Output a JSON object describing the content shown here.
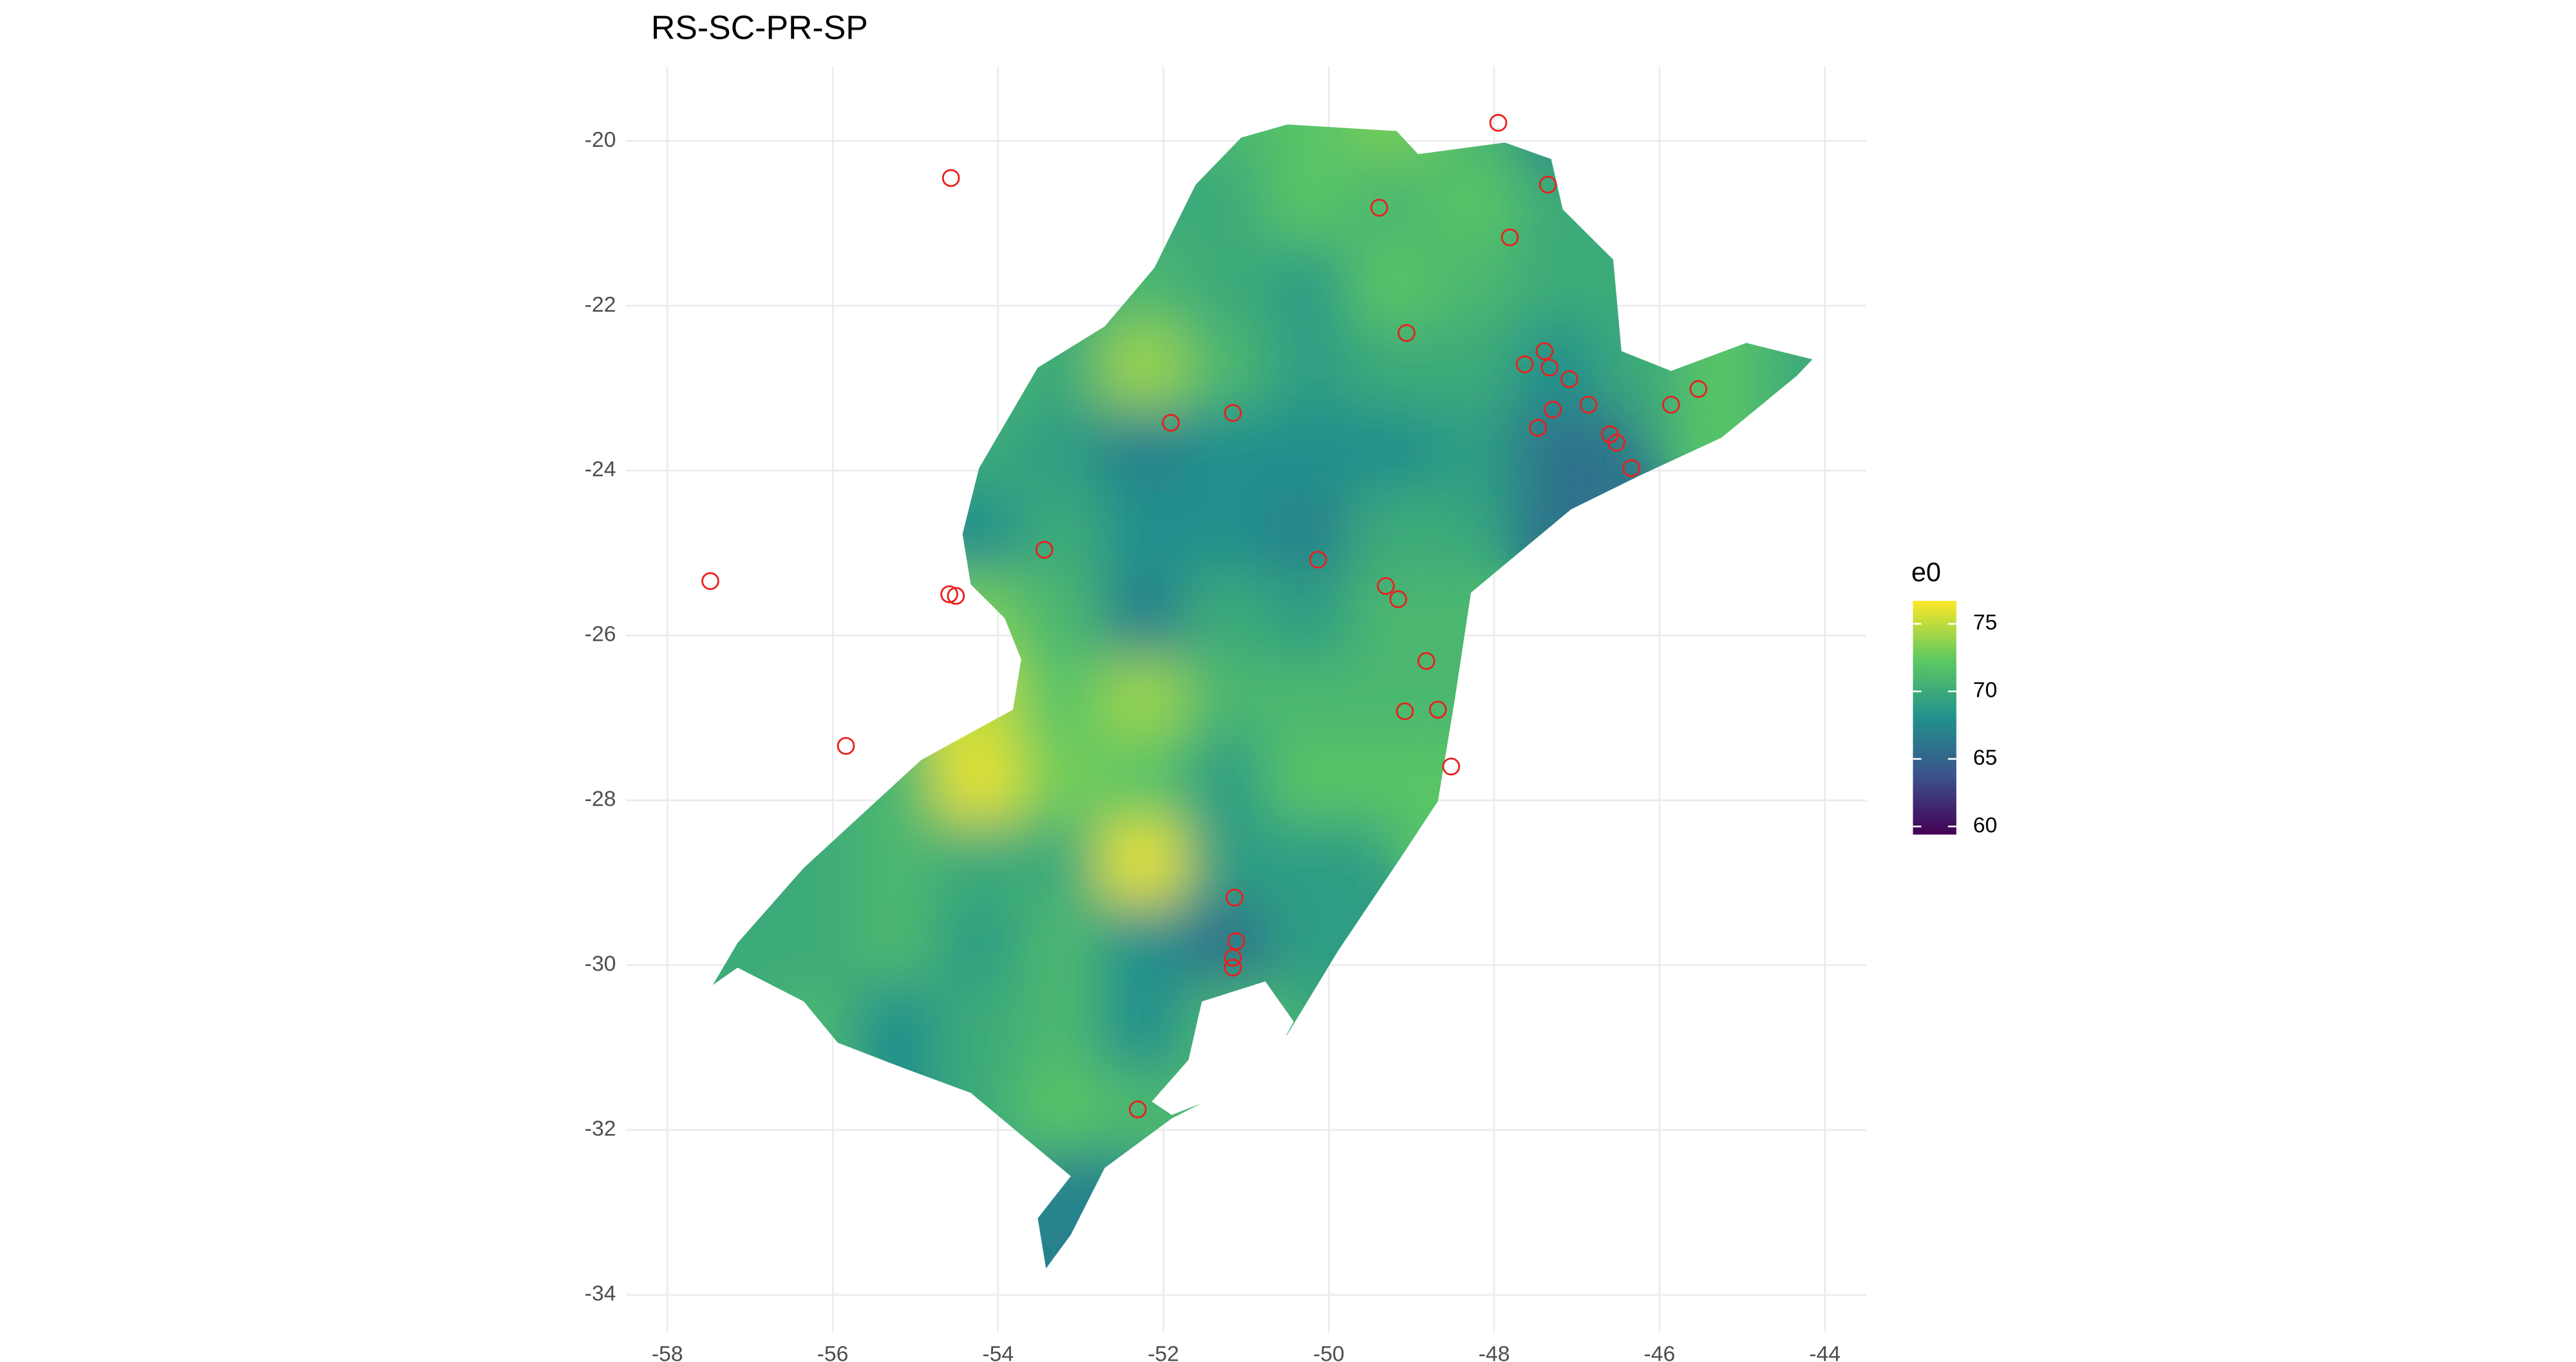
{
  "chart_data": {
    "type": "map",
    "title": "RS-SC-PR-SP",
    "xlim": [
      -58.5,
      -43.5
    ],
    "ylim": [
      -34.45,
      -19.1
    ],
    "xticks": [
      -58,
      -56,
      -54,
      -52,
      -50,
      -48,
      -46,
      -44
    ],
    "yticks": [
      -20,
      -22,
      -24,
      -26,
      -28,
      -30,
      -32,
      -34
    ],
    "grid": true,
    "surface": {
      "name": "e0",
      "x": [
        -57,
        -56,
        -55,
        -54,
        -53,
        -52,
        -51,
        -50,
        -49,
        -48,
        -47,
        -46,
        -45,
        -44
      ],
      "y": [
        -20,
        -21,
        -22,
        -23,
        -24,
        -25,
        -26,
        -27,
        -28,
        -29,
        -30,
        -31,
        -32,
        -33
      ],
      "values": [
        [
          null,
          null,
          null,
          null,
          null,
          null,
          71,
          72,
          73,
          71,
          67,
          null,
          null,
          null
        ],
        [
          null,
          null,
          null,
          null,
          null,
          70,
          70,
          72,
          71,
          72,
          70,
          null,
          null,
          null
        ],
        [
          null,
          null,
          null,
          null,
          70,
          71,
          70,
          69,
          72,
          71,
          70,
          null,
          null,
          null
        ],
        [
          null,
          null,
          null,
          71,
          70,
          74,
          71,
          69,
          70,
          70,
          68,
          70,
          72,
          70
        ],
        [
          null,
          null,
          null,
          70,
          69,
          67,
          68,
          68,
          68,
          69,
          66,
          null,
          null,
          null
        ],
        [
          null,
          null,
          null,
          68,
          70,
          68,
          68,
          67,
          70,
          null,
          null,
          null,
          null,
          null
        ],
        [
          null,
          null,
          null,
          73,
          71,
          67,
          70,
          69,
          71,
          null,
          null,
          null,
          null,
          null
        ],
        [
          null,
          null,
          null,
          75,
          72,
          74,
          71,
          71,
          71,
          null,
          null,
          null,
          null,
          null
        ],
        [
          null,
          70,
          71,
          76,
          73,
          72,
          69,
          72,
          72,
          null,
          null,
          null,
          null,
          null
        ],
        [
          70,
          70,
          71,
          70,
          70,
          76,
          69,
          69,
          null,
          null,
          null,
          null,
          null,
          null
        ],
        [
          70,
          70,
          71,
          69,
          71,
          68,
          66,
          69,
          null,
          null,
          null,
          null,
          null,
          null
        ],
        [
          null,
          71,
          68,
          70,
          71,
          68,
          71,
          null,
          null,
          null,
          null,
          null,
          null,
          null
        ],
        [
          null,
          null,
          null,
          70,
          72,
          71,
          null,
          null,
          null,
          null,
          null,
          null,
          null,
          null
        ],
        [
          null,
          null,
          null,
          null,
          67,
          null,
          null,
          null,
          null,
          null,
          null,
          null,
          null,
          null
        ]
      ]
    },
    "outline": {
      "x": [
        -51.06,
        -50.5,
        -49.18,
        -48.92,
        -47.87,
        -47.31,
        -47.17,
        -46.56,
        -46.46,
        -45.86,
        -44.95,
        -44.15,
        -44.34,
        -45.25,
        -46.26,
        -47.07,
        -48.28,
        -48.48,
        -48.68,
        -49.08,
        -49.89,
        -50.5,
        -51.1,
        -51.9,
        -52.71,
        -53.12,
        -53.42,
        -53.52,
        -53.12,
        -53.72,
        -54.33,
        -55.14,
        -55.94,
        -56.35,
        -57.15,
        -57.45,
        -57.15,
        -56.35,
        -54.93,
        -53.82,
        -53.72,
        -53.92,
        -54.33,
        -54.43,
        -54.23,
        -53.52,
        -52.71,
        -52.11,
        -51.61
      ],
      "y": [
        -19.96,
        -19.8,
        -19.88,
        -20.16,
        -20.02,
        -20.22,
        -20.83,
        -21.44,
        -22.55,
        -22.79,
        -22.45,
        -22.65,
        -22.85,
        -23.6,
        -24.07,
        -24.47,
        -25.48,
        -26.8,
        -28.01,
        -28.62,
        -29.83,
        -30.84,
        -31.45,
        -31.86,
        -32.46,
        -33.27,
        -33.68,
        -33.07,
        -32.56,
        -32.06,
        -31.55,
        -31.25,
        -30.94,
        -30.44,
        -30.03,
        -30.24,
        -29.73,
        -28.82,
        -27.51,
        -26.9,
        -26.29,
        -25.79,
        -25.38,
        -24.77,
        -23.97,
        -22.75,
        -22.25,
        -21.54,
        -20.53
      ]
    },
    "points": {
      "color": "#e8211e",
      "x": [
        -47.95,
        -54.57,
        -47.35,
        -49.39,
        -47.81,
        -49.06,
        -47.39,
        -47.63,
        -47.33,
        -47.09,
        -46.86,
        -47.29,
        -45.86,
        -45.53,
        -47.47,
        -46.6,
        -46.52,
        -46.34,
        -51.91,
        -51.16,
        -53.44,
        -57.48,
        -54.59,
        -54.51,
        -50.13,
        -49.31,
        -49.16,
        -48.82,
        -48.68,
        -49.08,
        -48.52,
        -55.84,
        -51.14,
        -51.12,
        -51.16,
        -51.16,
        -52.31
      ],
      "y": [
        -19.78,
        -20.45,
        -20.53,
        -20.81,
        -21.17,
        -22.33,
        -22.55,
        -22.71,
        -22.75,
        -22.89,
        -23.2,
        -23.26,
        -23.2,
        -23.01,
        -23.48,
        -23.56,
        -23.66,
        -23.97,
        -23.42,
        -23.3,
        -24.96,
        -25.34,
        -25.5,
        -25.52,
        -25.08,
        -25.4,
        -25.56,
        -26.31,
        -26.9,
        -26.92,
        -27.59,
        -27.34,
        -29.18,
        -29.71,
        -29.91,
        -30.03,
        -31.75
      ]
    },
    "legend": {
      "title": "e0",
      "clim": [
        59.4,
        76.7
      ],
      "ticks": [
        60,
        65,
        70,
        75
      ],
      "colorscale": [
        "#440154",
        "#3b528b",
        "#21918c",
        "#5ec962",
        "#fde725"
      ]
    }
  }
}
